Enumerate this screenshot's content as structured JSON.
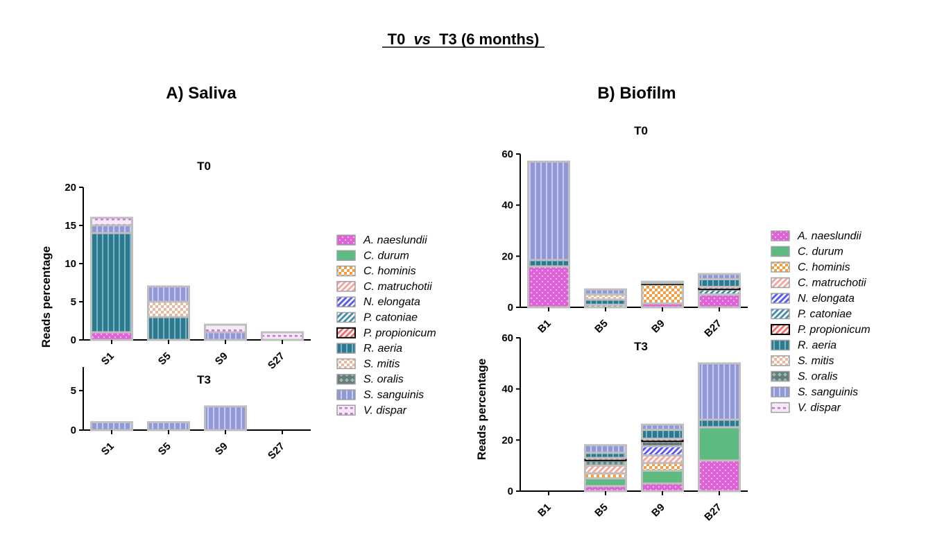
{
  "figure_title": {
    "prefix": "T0",
    "vs": "vs",
    "suffix": "T3 (6 months)"
  },
  "panels": {
    "saliva": "A) Saliva",
    "biofilm": "B) Biofilm"
  },
  "species": [
    {
      "name": "A. naeslundii",
      "color": "#e060d8",
      "pattern": "dots"
    },
    {
      "name": "C. durum",
      "color": "#5dbb82",
      "pattern": "solid"
    },
    {
      "name": "C. hominis",
      "color": "#f0a040",
      "pattern": "checker"
    },
    {
      "name": "C. matruchotii",
      "color": "#f0a8a0",
      "pattern": "diag"
    },
    {
      "name": "N. elongata",
      "color": "#5b5bf0",
      "pattern": "diag"
    },
    {
      "name": "P. catoniae",
      "color": "#4a8fa8",
      "pattern": "diag"
    },
    {
      "name": "P.  propionicum",
      "color": "#f07070",
      "pattern": "diag"
    },
    {
      "name": "R. aeria",
      "color": "#2a7a90",
      "pattern": "bricks"
    },
    {
      "name": "S. mitis",
      "color": "#e8b8a0",
      "pattern": "checker"
    },
    {
      "name": "S. oralis",
      "color": "#8ac0b0",
      "pattern": "diamond"
    },
    {
      "name": "S. sanguinis",
      "color": "#9098d8",
      "pattern": "vstripes"
    },
    {
      "name": "V. dispar",
      "color": "#d070e0",
      "pattern": "dashes"
    }
  ],
  "chart_data": [
    {
      "type": "bar",
      "stacked": true,
      "panel": "A) Saliva",
      "title": "T0",
      "ylabel": "Reads percentage",
      "categories": [
        "S1",
        "S5",
        "S9",
        "S27"
      ],
      "ylim": [
        0,
        20
      ],
      "yticks": [
        0,
        5,
        10,
        15,
        20
      ],
      "series": [
        {
          "name": "A. naeslundii",
          "values": [
            1,
            0,
            0,
            0
          ]
        },
        {
          "name": "R. aeria",
          "values": [
            13,
            3,
            0,
            0
          ]
        },
        {
          "name": "S. mitis",
          "values": [
            0,
            2,
            0,
            0
          ]
        },
        {
          "name": "S. sanguinis",
          "values": [
            1,
            2,
            1,
            0
          ]
        },
        {
          "name": "V. dispar",
          "values": [
            1,
            0,
            1,
            1
          ]
        }
      ]
    },
    {
      "type": "bar",
      "stacked": true,
      "panel": "A) Saliva",
      "title": "T3",
      "ylabel": "Reads percentage",
      "categories": [
        "S1",
        "S5",
        "S9",
        "S27"
      ],
      "ylim": [
        0,
        8
      ],
      "yticks": [
        0,
        5
      ],
      "series": [
        {
          "name": "S. sanguinis",
          "values": [
            1,
            1,
            3,
            0
          ]
        }
      ]
    },
    {
      "type": "bar",
      "stacked": true,
      "panel": "B) Biofilm",
      "title": "T0",
      "ylabel": "Reads percentage",
      "categories": [
        "B1",
        "B5",
        "B9",
        "B27"
      ],
      "ylim": [
        0,
        60
      ],
      "yticks": [
        0,
        20,
        40,
        60
      ],
      "series": [
        {
          "name": "A. naeslundii",
          "values": [
            16,
            0,
            1.5,
            5
          ]
        },
        {
          "name": "C. hominis",
          "values": [
            0,
            0,
            7.5,
            0
          ]
        },
        {
          "name": "P. catoniae",
          "values": [
            0,
            1,
            0,
            2
          ]
        },
        {
          "name": "P.  propionicum",
          "values": [
            0,
            0,
            0.5,
            1
          ]
        },
        {
          "name": "R. aeria",
          "values": [
            2.5,
            2,
            0,
            3
          ]
        },
        {
          "name": "S. mitis",
          "values": [
            0,
            2,
            0,
            0
          ]
        },
        {
          "name": "S. sanguinis",
          "values": [
            38.5,
            2,
            0.5,
            2
          ]
        }
      ]
    },
    {
      "type": "bar",
      "stacked": true,
      "panel": "B) Biofilm",
      "title": "T3",
      "ylabel": "Reads percentage",
      "categories": [
        "B1",
        "B5",
        "B9",
        "B27"
      ],
      "ylim": [
        0,
        60
      ],
      "yticks": [
        0,
        20,
        40,
        60
      ],
      "series": [
        {
          "name": "A. naeslundii",
          "values": [
            0,
            2,
            3,
            12
          ]
        },
        {
          "name": "C. durum",
          "values": [
            0,
            3,
            5,
            13
          ]
        },
        {
          "name": "C. hominis",
          "values": [
            0,
            2,
            3,
            0
          ]
        },
        {
          "name": "C. matruchotii",
          "values": [
            0,
            3,
            3,
            0
          ]
        },
        {
          "name": "N. elongata",
          "values": [
            0,
            0,
            3.5,
            0
          ]
        },
        {
          "name": "S. oralis",
          "values": [
            0,
            2,
            2,
            0
          ]
        },
        {
          "name": "P.  propionicum",
          "values": [
            0,
            1,
            1,
            0
          ]
        },
        {
          "name": "R. aeria",
          "values": [
            0,
            2,
            3.5,
            3
          ]
        },
        {
          "name": "S. sanguinis",
          "values": [
            0,
            3,
            2,
            22
          ]
        }
      ]
    }
  ]
}
